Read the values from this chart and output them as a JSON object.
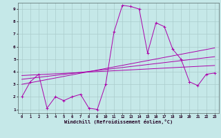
{
  "xlabel": "Windchill (Refroidissement éolien,°C)",
  "background_color": "#c5e8e8",
  "grid_color": "#aacccc",
  "line_color": "#aa00aa",
  "xlim": [
    -0.5,
    23.5
  ],
  "ylim": [
    0.7,
    9.5
  ],
  "x_ticks": [
    0,
    1,
    2,
    3,
    4,
    5,
    6,
    7,
    8,
    9,
    10,
    11,
    12,
    13,
    14,
    15,
    16,
    17,
    18,
    19,
    20,
    21,
    22,
    23
  ],
  "y_ticks": [
    1,
    2,
    3,
    4,
    5,
    6,
    7,
    8,
    9
  ],
  "main_x": [
    0,
    1,
    2,
    3,
    4,
    5,
    6,
    7,
    8,
    9,
    10,
    11,
    12,
    13,
    14,
    15,
    16,
    17,
    18,
    19,
    20,
    21,
    22,
    23
  ],
  "main_y": [
    2.0,
    3.2,
    3.8,
    1.1,
    2.0,
    1.7,
    2.0,
    2.2,
    1.1,
    1.0,
    3.0,
    7.2,
    9.3,
    9.2,
    9.0,
    5.5,
    7.9,
    7.6,
    5.8,
    5.0,
    3.2,
    2.9,
    3.8,
    3.9
  ],
  "line1_x": [
    0,
    23
  ],
  "line1_y": [
    3.0,
    5.9
  ],
  "line2_x": [
    0,
    23
  ],
  "line2_y": [
    3.4,
    5.2
  ],
  "line3_x": [
    0,
    23
  ],
  "line3_y": [
    3.7,
    4.5
  ]
}
